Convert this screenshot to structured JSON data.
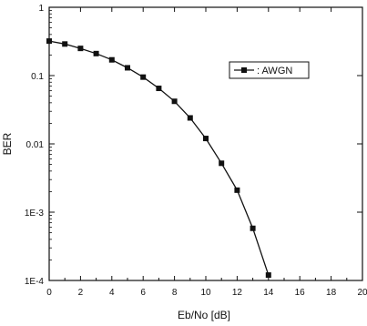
{
  "chart_data": {
    "type": "line",
    "xlabel": "Eb/No [dB]",
    "ylabel": "BER",
    "xlim": [
      0,
      20
    ],
    "ylim": [
      0.0001,
      1
    ],
    "yscale": "log",
    "x_ticks": [
      "0",
      "2",
      "4",
      "6",
      "8",
      "10",
      "12",
      "14",
      "16",
      "18",
      "20"
    ],
    "y_ticks": [
      {
        "value": 1,
        "label": "1"
      },
      {
        "value": 0.1,
        "label": "0.1"
      },
      {
        "value": 0.01,
        "label": "0.01"
      },
      {
        "value": 0.001,
        "label": "1E-3"
      },
      {
        "value": 0.0001,
        "label": "1E-4"
      }
    ],
    "grid": false,
    "legend_position": "top-right",
    "series": [
      {
        "name": ": AWGN",
        "marker": "square",
        "color": "#111111",
        "x": [
          0,
          1,
          2,
          3,
          4,
          5,
          6,
          7,
          8,
          9,
          10,
          11,
          12,
          13,
          14
        ],
        "y": [
          0.32,
          0.29,
          0.25,
          0.21,
          0.17,
          0.13,
          0.095,
          0.065,
          0.042,
          0.024,
          0.012,
          0.0052,
          0.0021,
          0.00058,
          0.00012
        ]
      }
    ]
  }
}
